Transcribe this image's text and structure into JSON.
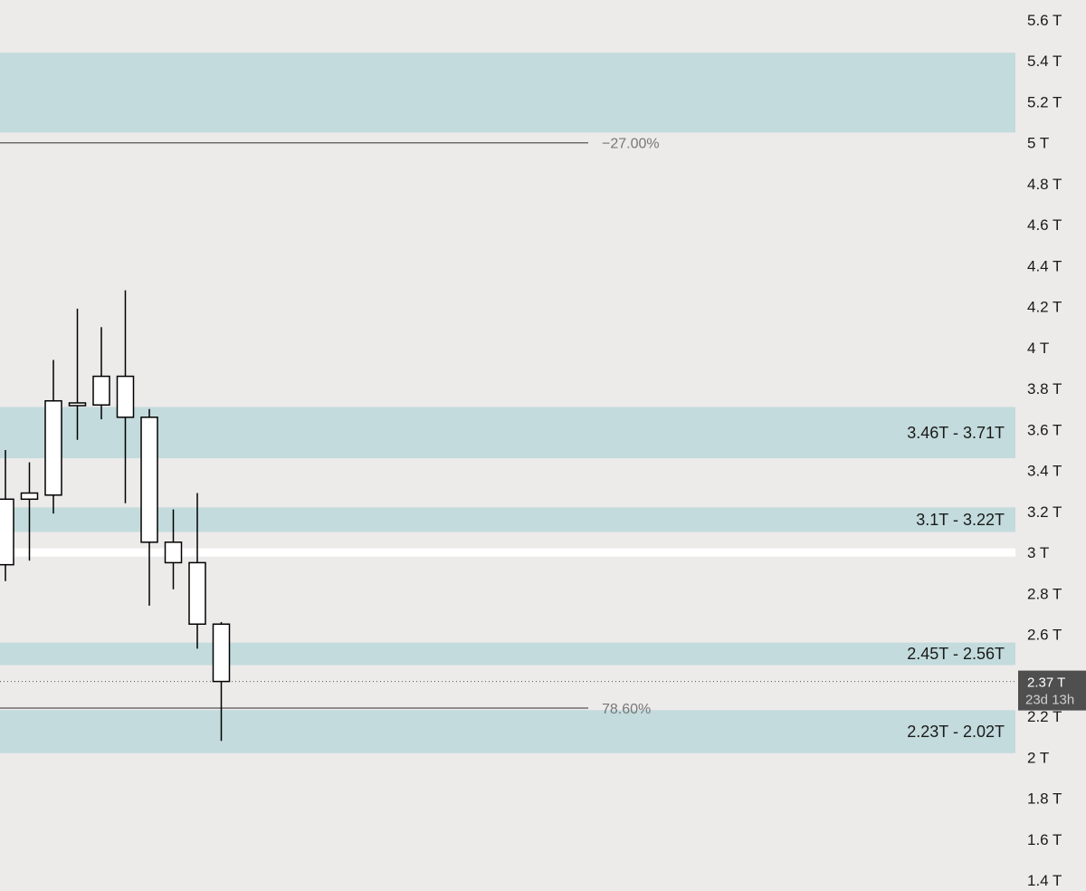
{
  "colors": {
    "background": "#edeaea",
    "zone": "#c3dbdc",
    "white_band": "#ffffff",
    "candle_body": "#ffffff",
    "candle_stroke": "#000000",
    "fib_line": "#555555",
    "price_tag_bg": "#4f4f4f"
  },
  "y_axis": {
    "ticks": [
      {
        "value": 5.6,
        "label": "5.6 T"
      },
      {
        "value": 5.4,
        "label": "5.4 T"
      },
      {
        "value": 5.2,
        "label": "5.2 T"
      },
      {
        "value": 5.0,
        "label": "5 T"
      },
      {
        "value": 4.8,
        "label": "4.8 T"
      },
      {
        "value": 4.6,
        "label": "4.6 T"
      },
      {
        "value": 4.4,
        "label": "4.4 T"
      },
      {
        "value": 4.2,
        "label": "4.2 T"
      },
      {
        "value": 4.0,
        "label": "4 T"
      },
      {
        "value": 3.8,
        "label": "3.8 T"
      },
      {
        "value": 3.6,
        "label": "3.6 T"
      },
      {
        "value": 3.4,
        "label": "3.4 T"
      },
      {
        "value": 3.2,
        "label": "3.2 T"
      },
      {
        "value": 3.0,
        "label": "3 T"
      },
      {
        "value": 2.8,
        "label": "2.8 T"
      },
      {
        "value": 2.6,
        "label": "2.6 T"
      },
      {
        "value": 2.2,
        "label": "2.2 T"
      },
      {
        "value": 2.0,
        "label": "2 T"
      },
      {
        "value": 1.8,
        "label": "1.8 T"
      },
      {
        "value": 1.6,
        "label": "1.6 T"
      },
      {
        "value": 1.4,
        "label": "1.4 T"
      }
    ]
  },
  "chart_data": {
    "type": "candlestick",
    "title": "",
    "xlabel": "",
    "ylabel": "",
    "ylim": [
      1.37,
      5.63
    ],
    "grid": false,
    "candles": [
      {
        "open": 2.94,
        "high": 3.5,
        "low": 2.86,
        "close": 3.26
      },
      {
        "open": 3.26,
        "high": 3.44,
        "low": 2.96,
        "close": 3.29
      },
      {
        "open": 3.28,
        "high": 3.94,
        "low": 3.19,
        "close": 3.74
      },
      {
        "open": 3.73,
        "high": 4.19,
        "low": 3.55,
        "close": 3.72
      },
      {
        "open": 3.72,
        "high": 4.1,
        "low": 3.65,
        "close": 3.86
      },
      {
        "open": 3.86,
        "high": 4.28,
        "low": 3.24,
        "close": 3.66
      },
      {
        "open": 3.66,
        "high": 3.7,
        "low": 2.74,
        "close": 3.05
      },
      {
        "open": 3.05,
        "high": 3.21,
        "low": 2.82,
        "close": 2.95
      },
      {
        "open": 2.95,
        "high": 3.29,
        "low": 2.53,
        "close": 2.65
      },
      {
        "open": 2.65,
        "high": 2.66,
        "low": 2.08,
        "close": 2.37
      }
    ],
    "zones": [
      {
        "from": 5.05,
        "to": 5.44,
        "label": ""
      },
      {
        "from": 3.46,
        "to": 3.71,
        "label": "3.46T - 3.71T"
      },
      {
        "from": 3.1,
        "to": 3.22,
        "label": "3.1T - 3.22T"
      },
      {
        "from": 2.45,
        "to": 2.56,
        "label": "2.45T - 2.56T"
      },
      {
        "from": 2.02,
        "to": 2.23,
        "label": "2.23T - 2.02T"
      }
    ],
    "white_band": {
      "from": 2.98,
      "to": 3.02
    },
    "fib_levels": [
      {
        "value": 5.0,
        "label": "−27.00%"
      },
      {
        "value": 2.24,
        "label": "78.60%"
      }
    ],
    "current_price": {
      "value": 2.37,
      "label": "2.37 T",
      "countdown": "23d 13h"
    }
  }
}
